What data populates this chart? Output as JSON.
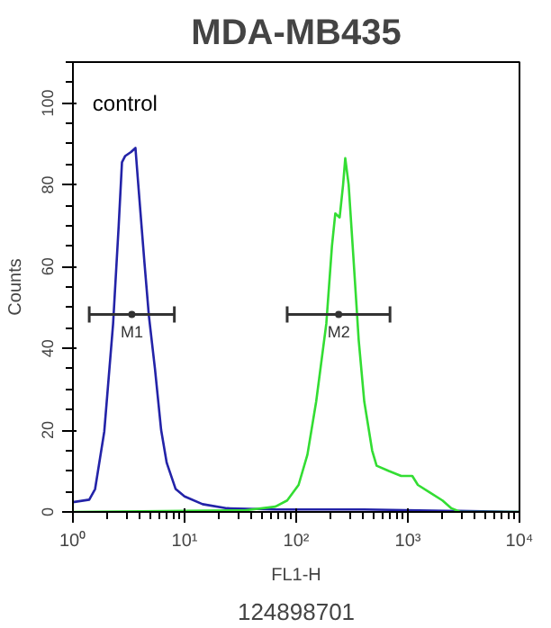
{
  "chart_data": {
    "type": "line",
    "title": "MDA-MB435",
    "xlabel": "FL1-H",
    "ylabel": "Counts",
    "log": "x",
    "grid": false,
    "marker": "none",
    "line_style": "solid",
    "xlim": [
      1,
      10000
    ],
    "xticks": [
      {
        "value": 1,
        "label": "10⁰"
      },
      {
        "value": 10,
        "label": "10¹"
      },
      {
        "value": 100,
        "label": "10²"
      },
      {
        "value": 1000,
        "label": "10³"
      },
      {
        "value": 10000,
        "label": "10⁴"
      }
    ],
    "ylim": [
      0,
      110
    ],
    "yticks": [
      0,
      20,
      40,
      60,
      80,
      100
    ],
    "series": [
      {
        "name": "control",
        "color": "#2323a8",
        "x": [
          1,
          1.4,
          1.58,
          1.91,
          2.29,
          2.57,
          2.75,
          2.93,
          3.31,
          3.63,
          3.85,
          4.37,
          4.79,
          5.43,
          6.17,
          6.92,
          8.32,
          10,
          14.5,
          24,
          65,
          407,
          10000
        ],
        "values": [
          2.4,
          3,
          5.6,
          19.7,
          46,
          70,
          85.5,
          87,
          88,
          89,
          80,
          61,
          48,
          35,
          20,
          12,
          5.6,
          3.8,
          1.9,
          0.9,
          0.6,
          0.6,
          0
        ]
      },
      {
        "color": "#33dd33",
        "x": [
          1,
          34.7,
          65,
          83,
          105,
          126,
          151,
          186,
          209,
          224,
          245,
          263,
          275,
          295,
          324,
          363,
          407,
          479,
          525,
          676,
          871,
          1096,
          1230,
          1585,
          2042,
          2455,
          2951,
          10000
        ],
        "values": [
          0,
          0.4,
          1.3,
          2.8,
          6.6,
          14,
          27,
          46,
          65,
          73,
          72,
          80,
          86.5,
          80,
          63,
          42,
          27,
          15,
          11.3,
          10,
          8.8,
          8.8,
          6.6,
          4.7,
          2.8,
          0.9,
          0,
          0
        ]
      },
      {
        "type": "scatter",
        "name": "M1",
        "color": "#333333",
        "x": [
          3.37
        ],
        "values": [
          48.3
        ],
        "xerrors": [
          [
            1.4,
            8.1
          ]
        ]
      },
      {
        "type": "scatter",
        "name": "M2",
        "color": "#333333",
        "x": [
          240
        ],
        "values": [
          48.3
        ],
        "xerrors": [
          [
            83,
            692
          ]
        ]
      }
    ],
    "annotations": [
      "124898701"
    ]
  }
}
